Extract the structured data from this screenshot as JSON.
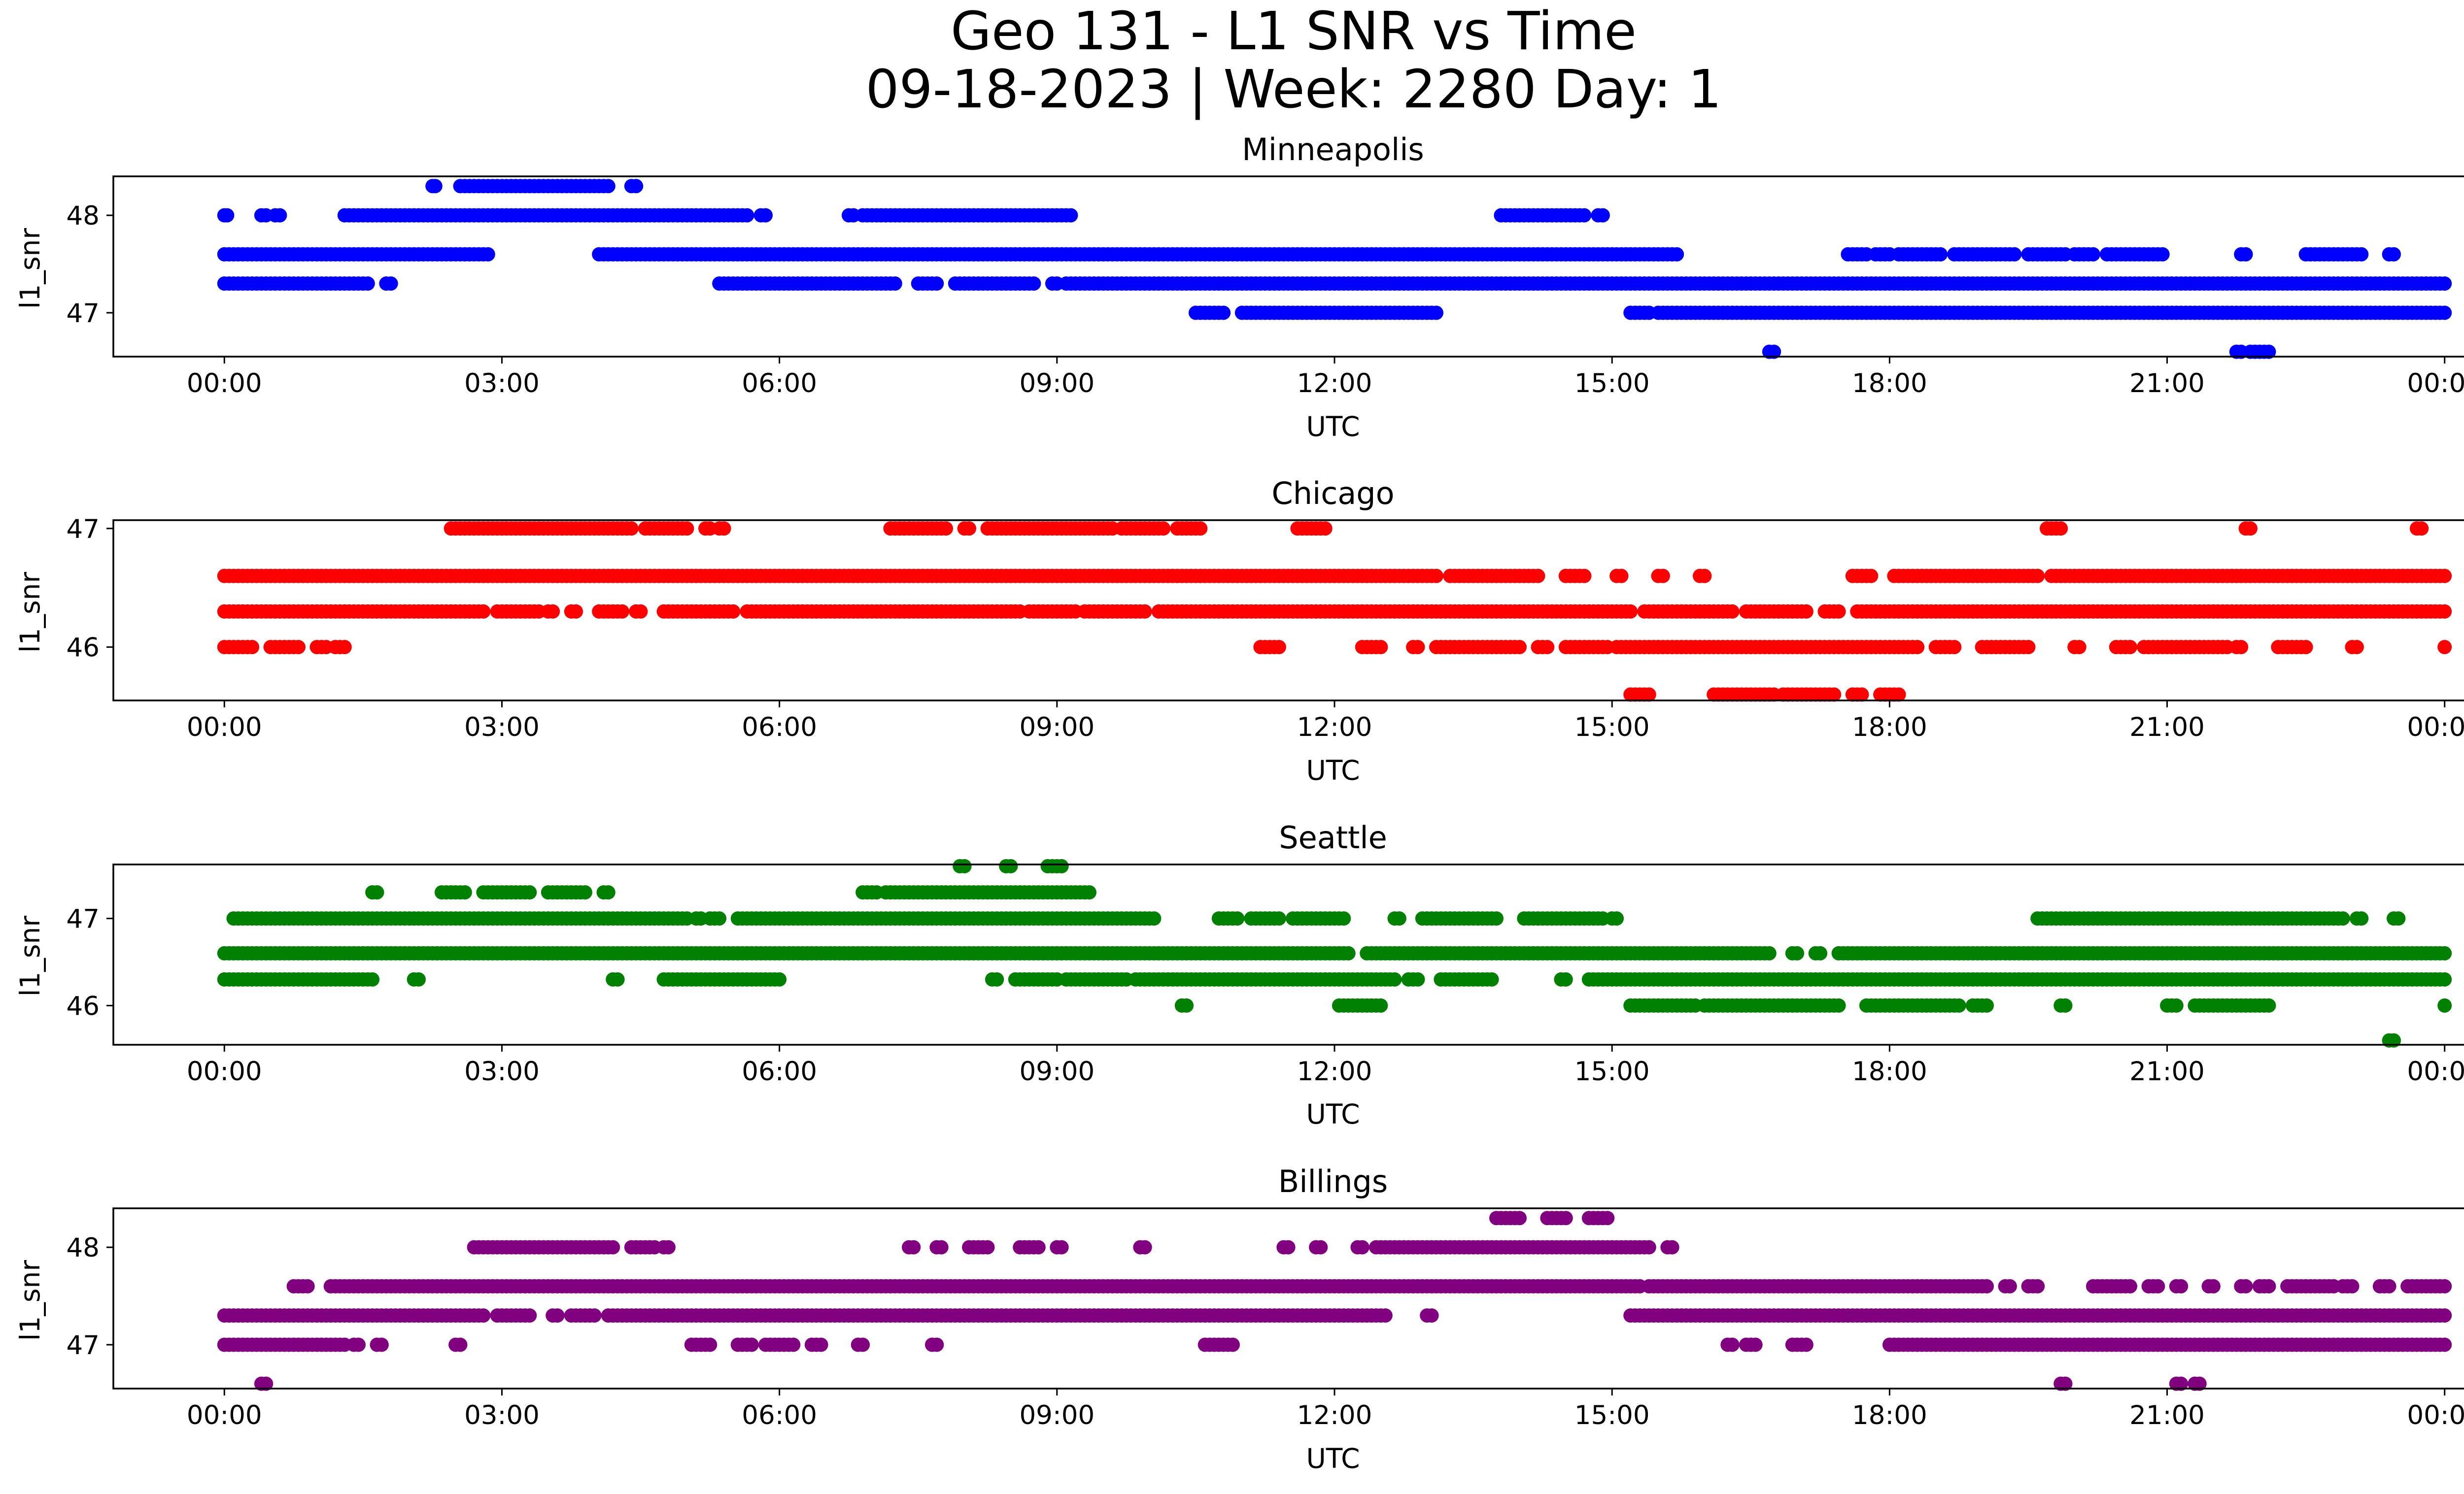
{
  "figure": {
    "title_line1": "Geo 131 - L1 SNR vs Time",
    "title_line2": "09-18-2023 | Week: 2280 Day: 1"
  },
  "chart_data": [
    {
      "type": "scatter",
      "title": "Minneapolis",
      "xlabel": "UTC",
      "ylabel": "l1_snr",
      "color": "#0000ff",
      "xlim_hours": [
        -1.2,
        25.2
      ],
      "ylim": [
        46.55,
        48.4
      ],
      "yticks": [
        47,
        48
      ],
      "xticks_hours": [
        0,
        3,
        6,
        9,
        12,
        15,
        18,
        21,
        24
      ],
      "xtick_labels": [
        "00:00",
        "03:00",
        "06:00",
        "09:00",
        "12:00",
        "15:00",
        "18:00",
        "21:00",
        "00:00"
      ],
      "grid": false,
      "bands": [
        {
          "y": 48.3,
          "intervals": [
            [
              2.25,
              2.28
            ],
            [
              2.55,
              4.15
            ],
            [
              4.4,
              4.45
            ]
          ]
        },
        {
          "y": 48.0,
          "intervals": [
            [
              0.0,
              0.03
            ],
            [
              0.4,
              0.45
            ],
            [
              0.55,
              0.6
            ],
            [
              1.3,
              5.65
            ],
            [
              5.8,
              5.85
            ],
            [
              6.75,
              6.8
            ],
            [
              6.9,
              9.15
            ],
            [
              13.8,
              14.7
            ],
            [
              14.85,
              14.9
            ]
          ]
        },
        {
          "y": 47.6,
          "intervals": [
            [
              0.0,
              2.85
            ],
            [
              4.05,
              15.7
            ],
            [
              17.55,
              17.75
            ],
            [
              17.85,
              18.0
            ],
            [
              18.1,
              18.55
            ],
            [
              18.7,
              19.35
            ],
            [
              19.5,
              19.9
            ],
            [
              20.0,
              20.2
            ],
            [
              20.35,
              20.95
            ],
            [
              21.8,
              21.85
            ],
            [
              22.5,
              23.1
            ],
            [
              23.4,
              23.45
            ]
          ]
        },
        {
          "y": 47.3,
          "intervals": [
            [
              0.0,
              1.55
            ],
            [
              1.75,
              1.8
            ],
            [
              5.35,
              7.25
            ],
            [
              7.5,
              7.7
            ],
            [
              7.9,
              8.55
            ],
            [
              8.6,
              8.75
            ],
            [
              8.95,
              9.0
            ],
            [
              9.1,
              24.0
            ]
          ]
        },
        {
          "y": 47.0,
          "intervals": [
            [
              10.5,
              10.8
            ],
            [
              11.0,
              13.1
            ],
            [
              15.2,
              15.4
            ],
            [
              15.5,
              24.0
            ]
          ]
        },
        {
          "y": 46.6,
          "intervals": [
            [
              16.7,
              16.75
            ],
            [
              21.75,
              21.8
            ],
            [
              21.9,
              22.1
            ]
          ]
        }
      ]
    },
    {
      "type": "scatter",
      "title": "Chicago",
      "xlabel": "UTC",
      "ylabel": "l1_snr",
      "color": "#ff0000",
      "xlim_hours": [
        -1.2,
        25.2
      ],
      "ylim": [
        45.55,
        47.07
      ],
      "yticks": [
        46,
        47
      ],
      "xticks_hours": [
        0,
        3,
        6,
        9,
        12,
        15,
        18,
        21,
        24
      ],
      "xtick_labels": [
        "00:00",
        "03:00",
        "06:00",
        "09:00",
        "12:00",
        "15:00",
        "18:00",
        "21:00",
        "00:00"
      ],
      "grid": false,
      "bands": [
        {
          "y": 47.0,
          "intervals": [
            [
              2.45,
              4.4
            ],
            [
              4.55,
              5.0
            ],
            [
              5.2,
              5.25
            ],
            [
              5.35,
              5.4
            ],
            [
              7.2,
              7.8
            ],
            [
              8.0,
              8.05
            ],
            [
              8.25,
              9.6
            ],
            [
              9.7,
              10.15
            ],
            [
              10.3,
              10.55
            ],
            [
              11.6,
              11.9
            ],
            [
              19.7,
              19.85
            ],
            [
              21.85,
              21.9
            ],
            [
              23.7,
              23.75
            ]
          ]
        },
        {
          "y": 46.6,
          "intervals": [
            [
              0.0,
              13.1
            ],
            [
              13.25,
              14.2
            ],
            [
              14.5,
              14.7
            ],
            [
              15.05,
              15.1
            ],
            [
              15.5,
              15.55
            ],
            [
              15.95,
              16.0
            ],
            [
              17.6,
              17.8
            ],
            [
              18.05,
              19.6
            ],
            [
              19.75,
              24.0
            ]
          ]
        },
        {
          "y": 46.3,
          "intervals": [
            [
              0.0,
              2.8
            ],
            [
              2.95,
              3.4
            ],
            [
              3.5,
              3.55
            ],
            [
              3.75,
              3.8
            ],
            [
              4.05,
              4.3
            ],
            [
              4.45,
              4.5
            ],
            [
              4.75,
              5.5
            ],
            [
              5.65,
              8.6
            ],
            [
              8.7,
              9.2
            ],
            [
              9.3,
              9.95
            ],
            [
              10.1,
              15.2
            ],
            [
              15.35,
              16.3
            ],
            [
              16.45,
              17.1
            ],
            [
              17.3,
              17.45
            ],
            [
              17.65,
              24.0
            ]
          ]
        },
        {
          "y": 46.0,
          "intervals": [
            [
              0.0,
              0.3
            ],
            [
              0.5,
              0.8
            ],
            [
              1.0,
              1.1
            ],
            [
              1.2,
              1.3
            ],
            [
              11.2,
              11.4
            ],
            [
              12.3,
              12.5
            ],
            [
              12.85,
              12.9
            ],
            [
              13.1,
              14.0
            ],
            [
              14.2,
              14.3
            ],
            [
              14.5,
              14.95
            ],
            [
              15.05,
              18.3
            ],
            [
              18.5,
              18.7
            ],
            [
              19.0,
              19.5
            ],
            [
              20.0,
              20.05
            ],
            [
              20.45,
              20.6
            ],
            [
              20.75,
              21.65
            ],
            [
              21.75,
              21.8
            ],
            [
              22.2,
              22.5
            ],
            [
              23.0,
              23.05
            ],
            [
              24.0,
              24.0
            ]
          ]
        },
        {
          "y": 45.6,
          "intervals": [
            [
              15.2,
              15.4
            ],
            [
              16.1,
              16.75
            ],
            [
              16.85,
              17.4
            ],
            [
              17.6,
              17.7
            ],
            [
              17.9,
              18.1
            ]
          ]
        }
      ]
    },
    {
      "type": "scatter",
      "title": "Seattle",
      "xlabel": "UTC",
      "ylabel": "l1_snr",
      "color": "#008000",
      "xlim_hours": [
        -1.2,
        25.2
      ],
      "ylim": [
        45.55,
        47.62
      ],
      "yticks": [
        46,
        47
      ],
      "xticks_hours": [
        0,
        3,
        6,
        9,
        12,
        15,
        18,
        21,
        24
      ],
      "xtick_labels": [
        "00:00",
        "03:00",
        "06:00",
        "09:00",
        "12:00",
        "15:00",
        "18:00",
        "21:00",
        "00:00"
      ],
      "grid": false,
      "bands": [
        {
          "y": 47.6,
          "intervals": [
            [
              7.95,
              8.0
            ],
            [
              8.45,
              8.5
            ],
            [
              8.9,
              9.05
            ]
          ]
        },
        {
          "y": 47.3,
          "intervals": [
            [
              1.6,
              1.65
            ],
            [
              2.35,
              2.6
            ],
            [
              2.8,
              3.3
            ],
            [
              3.5,
              3.9
            ],
            [
              4.1,
              4.15
            ],
            [
              6.9,
              7.05
            ],
            [
              7.15,
              9.35
            ]
          ]
        },
        {
          "y": 47.0,
          "intervals": [
            [
              0.1,
              5.0
            ],
            [
              5.1,
              5.15
            ],
            [
              5.25,
              5.35
            ],
            [
              5.55,
              10.05
            ],
            [
              10.75,
              10.95
            ],
            [
              11.1,
              11.4
            ],
            [
              11.55,
              12.1
            ],
            [
              12.65,
              12.7
            ],
            [
              12.95,
              13.75
            ],
            [
              14.05,
              14.9
            ],
            [
              15.0,
              15.05
            ],
            [
              19.6,
              22.9
            ],
            [
              23.05,
              23.1
            ],
            [
              23.45,
              23.5
            ]
          ]
        },
        {
          "y": 46.6,
          "intervals": [
            [
              0.0,
              12.15
            ],
            [
              12.35,
              16.7
            ],
            [
              16.95,
              17.0
            ],
            [
              17.2,
              17.25
            ],
            [
              17.45,
              24.0
            ]
          ]
        },
        {
          "y": 46.3,
          "intervals": [
            [
              0.0,
              1.6
            ],
            [
              2.05,
              2.1
            ],
            [
              4.2,
              4.25
            ],
            [
              4.75,
              6.0
            ],
            [
              8.3,
              8.35
            ],
            [
              8.55,
              9.0
            ],
            [
              9.1,
              9.55
            ],
            [
              9.6,
              9.75
            ],
            [
              9.85,
              12.5
            ],
            [
              12.55,
              12.65
            ],
            [
              12.8,
              12.9
            ],
            [
              13.15,
              13.7
            ],
            [
              14.45,
              14.5
            ],
            [
              14.75,
              24.0
            ]
          ]
        },
        {
          "y": 46.0,
          "intervals": [
            [
              10.35,
              10.4
            ],
            [
              12.05,
              12.5
            ],
            [
              15.2,
              15.9
            ],
            [
              16.0,
              17.45
            ],
            [
              17.75,
              18.75
            ],
            [
              18.9,
              19.05
            ],
            [
              19.85,
              19.9
            ],
            [
              21.0,
              21.1
            ],
            [
              21.3,
              22.1
            ],
            [
              24.0,
              24.0
            ]
          ]
        },
        {
          "y": 45.6,
          "intervals": [
            [
              23.4,
              23.45
            ]
          ]
        }
      ]
    },
    {
      "type": "scatter",
      "title": "Billings",
      "xlabel": "UTC",
      "ylabel": "l1_snr",
      "color": "#800080",
      "xlim_hours": [
        -1.2,
        25.2
      ],
      "ylim": [
        46.55,
        48.4
      ],
      "yticks": [
        47,
        48
      ],
      "xticks_hours": [
        0,
        3,
        6,
        9,
        12,
        15,
        18,
        21,
        24
      ],
      "xtick_labels": [
        "00:00",
        "03:00",
        "06:00",
        "09:00",
        "12:00",
        "15:00",
        "18:00",
        "21:00",
        "00:00"
      ],
      "grid": false,
      "bands": [
        {
          "y": 48.3,
          "intervals": [
            [
              13.75,
              14.0
            ],
            [
              14.3,
              14.5
            ],
            [
              14.75,
              14.95
            ]
          ]
        },
        {
          "y": 48.0,
          "intervals": [
            [
              2.7,
              3.3
            ],
            [
              3.35,
              4.2
            ],
            [
              4.4,
              4.65
            ],
            [
              4.75,
              4.8
            ],
            [
              7.4,
              7.45
            ],
            [
              7.7,
              7.75
            ],
            [
              8.05,
              8.25
            ],
            [
              8.6,
              8.8
            ],
            [
              9.0,
              9.05
            ],
            [
              9.9,
              9.95
            ],
            [
              11.45,
              11.5
            ],
            [
              11.8,
              11.85
            ],
            [
              12.25,
              12.3
            ],
            [
              12.45,
              15.4
            ],
            [
              15.6,
              15.65
            ]
          ]
        },
        {
          "y": 47.6,
          "intervals": [
            [
              0.75,
              0.9
            ],
            [
              1.15,
              15.3
            ],
            [
              15.4,
              19.05
            ],
            [
              19.25,
              19.3
            ],
            [
              19.5,
              19.6
            ],
            [
              20.2,
              20.6
            ],
            [
              20.8,
              20.9
            ],
            [
              21.1,
              21.15
            ],
            [
              21.45,
              21.5
            ],
            [
              21.8,
              21.85
            ],
            [
              22.0,
              22.1
            ],
            [
              22.3,
              22.8
            ],
            [
              22.9,
              23.0
            ],
            [
              23.3,
              23.4
            ],
            [
              23.6,
              24.0
            ]
          ]
        },
        {
          "y": 47.3,
          "intervals": [
            [
              0.0,
              2.8
            ],
            [
              2.95,
              3.3
            ],
            [
              3.55,
              3.6
            ],
            [
              3.75,
              4.0
            ],
            [
              4.15,
              12.55
            ],
            [
              13.0,
              13.05
            ],
            [
              15.2,
              24.0
            ]
          ]
        },
        {
          "y": 47.0,
          "intervals": [
            [
              0.0,
              1.3
            ],
            [
              1.4,
              1.45
            ],
            [
              1.65,
              1.7
            ],
            [
              2.5,
              2.55
            ],
            [
              5.05,
              5.25
            ],
            [
              5.55,
              5.7
            ],
            [
              5.85,
              6.15
            ],
            [
              6.35,
              6.45
            ],
            [
              6.85,
              6.9
            ],
            [
              7.65,
              7.7
            ],
            [
              10.6,
              10.9
            ],
            [
              16.25,
              16.3
            ],
            [
              16.45,
              16.55
            ],
            [
              16.95,
              17.1
            ],
            [
              18.0,
              24.0
            ]
          ]
        },
        {
          "y": 46.6,
          "intervals": [
            [
              0.4,
              0.45
            ],
            [
              19.85,
              19.9
            ],
            [
              21.1,
              21.15
            ],
            [
              21.3,
              21.35
            ]
          ]
        }
      ]
    }
  ]
}
